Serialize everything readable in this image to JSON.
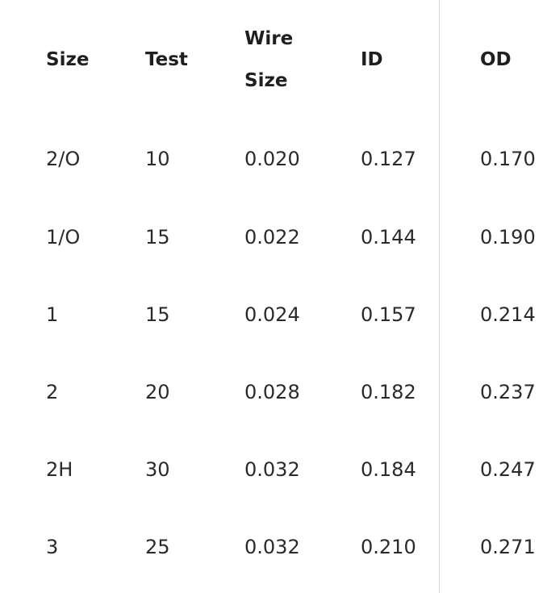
{
  "table": {
    "headers": {
      "size": "Size",
      "test": "Test",
      "wire_line1": "Wire",
      "wire_line2": "Size",
      "id": "ID",
      "od": "OD"
    },
    "rows": [
      [
        "2/O",
        "10",
        "0.020",
        "0.127",
        "0.170"
      ],
      [
        "1/O",
        "15",
        "0.022",
        "0.144",
        "0.190"
      ],
      [
        "1",
        "15",
        "0.024",
        "0.157",
        "0.214"
      ],
      [
        "2",
        "20",
        "0.028",
        "0.182",
        "0.237"
      ],
      [
        "2H",
        "30",
        "0.032",
        "0.184",
        "0.247"
      ],
      [
        "3",
        "25",
        "0.032",
        "0.210",
        "0.271"
      ]
    ]
  }
}
